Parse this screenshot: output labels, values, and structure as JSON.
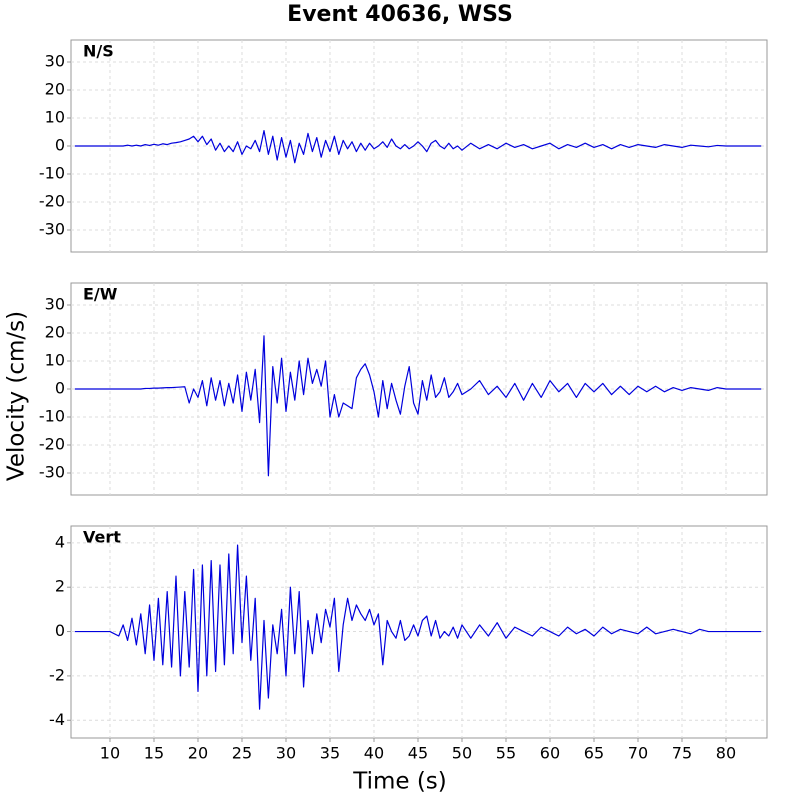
{
  "title": "Event 40636, WSS",
  "xlabel": "Time (s)",
  "ylabel": "Velocity (cm/s)",
  "chart_data": [
    {
      "type": "line",
      "title": "N/S",
      "color": "#0000dd",
      "grid": true,
      "xlim": [
        5.57,
        84.66
      ],
      "xticks": [
        10,
        15,
        20,
        25,
        30,
        35,
        40,
        45,
        50,
        55,
        60,
        65,
        70,
        75,
        80
      ],
      "ylim": [
        -37.86,
        37.86
      ],
      "yticks": [
        30,
        20,
        10,
        0,
        -10,
        -20,
        -30
      ],
      "x": [
        6,
        8,
        10,
        11,
        11.5,
        12,
        12.5,
        13,
        13.5,
        14,
        14.5,
        15,
        15.5,
        16,
        16.5,
        17,
        17.5,
        18,
        18.5,
        19,
        19.5,
        20,
        20.5,
        21,
        21.5,
        22,
        22.5,
        23,
        23.5,
        24,
        24.5,
        25,
        25.5,
        26,
        26.5,
        27,
        27.5,
        28,
        28.5,
        29,
        29.5,
        30,
        30.5,
        31,
        31.5,
        32,
        32.5,
        33,
        33.5,
        34,
        34.5,
        35,
        35.5,
        36,
        36.5,
        37,
        37.5,
        38,
        38.5,
        39,
        39.5,
        40,
        40.5,
        41,
        41.5,
        42,
        42.5,
        43,
        43.5,
        44,
        44.5,
        45,
        45.5,
        46,
        46.5,
        47,
        47.5,
        48,
        48.5,
        49,
        49.5,
        50,
        51,
        52,
        53,
        54,
        55,
        56,
        57,
        58,
        59,
        60,
        61,
        62,
        63,
        64,
        65,
        66,
        67,
        68,
        69,
        70,
        71,
        72,
        73,
        74,
        75,
        76,
        77,
        78,
        79,
        80,
        81,
        82,
        83,
        84
      ],
      "values": [
        0,
        0,
        0,
        0,
        0,
        0.3,
        0,
        0.3,
        0,
        0.5,
        0.2,
        0.6,
        0.3,
        0.8,
        0.5,
        1,
        1.2,
        1.5,
        2,
        2.5,
        3.5,
        1.5,
        3.5,
        0.5,
        2.5,
        -1.5,
        1,
        -2,
        0,
        -2,
        1.5,
        -3,
        0,
        -1,
        2,
        -2,
        5.5,
        -3,
        3.5,
        -5,
        3,
        -4,
        2,
        -6,
        1,
        -3,
        4.5,
        -2,
        3,
        -4,
        2,
        -2,
        3.5,
        -3,
        2,
        -1,
        1.5,
        -2,
        1,
        -1.5,
        1,
        -1,
        0,
        1.5,
        -0.5,
        2.5,
        0,
        -1,
        0.5,
        -1,
        0,
        1.5,
        0,
        -2,
        1,
        2,
        0,
        -1,
        1,
        -1,
        0,
        -1.5,
        1,
        -1,
        0.5,
        -1,
        1,
        -0.5,
        0.5,
        -1,
        0,
        1,
        -1,
        0.5,
        -0.5,
        1,
        -0.5,
        0.5,
        -1,
        0.5,
        -0.5,
        0.5,
        0,
        -0.5,
        0.5,
        0,
        -0.5,
        0.3,
        0,
        -0.3,
        0.2,
        0,
        0,
        0,
        0,
        0
      ]
    },
    {
      "type": "line",
      "title": "E/W",
      "color": "#0000dd",
      "grid": true,
      "xlim": [
        5.57,
        84.66
      ],
      "xticks": [
        10,
        15,
        20,
        25,
        30,
        35,
        40,
        45,
        50,
        55,
        60,
        65,
        70,
        75,
        80
      ],
      "ylim": [
        -37.86,
        37.86
      ],
      "yticks": [
        30,
        20,
        10,
        0,
        -10,
        -20,
        -30
      ],
      "x": [
        6,
        8,
        10,
        11,
        11.5,
        12,
        12.5,
        13,
        13.5,
        14,
        14.5,
        15,
        15.5,
        16,
        16.5,
        17,
        17.5,
        18,
        18.5,
        19,
        19.5,
        20,
        20.5,
        21,
        21.5,
        22,
        22.5,
        23,
        23.5,
        24,
        24.5,
        25,
        25.5,
        26,
        26.5,
        27,
        27.5,
        28,
        28.5,
        29,
        29.5,
        30,
        30.5,
        31,
        31.5,
        32,
        32.5,
        33,
        33.5,
        34,
        34.5,
        35,
        35.5,
        36,
        36.5,
        37,
        37.5,
        38,
        38.5,
        39,
        39.5,
        40,
        40.5,
        41,
        41.5,
        42,
        42.5,
        43,
        43.5,
        44,
        44.5,
        45,
        45.5,
        46,
        46.5,
        47,
        47.5,
        48,
        48.5,
        49,
        49.5,
        50,
        51,
        52,
        53,
        54,
        55,
        56,
        57,
        58,
        59,
        60,
        61,
        62,
        63,
        64,
        65,
        66,
        67,
        68,
        69,
        70,
        71,
        72,
        73,
        74,
        75,
        76,
        77,
        78,
        79,
        80,
        81,
        82,
        83,
        84
      ],
      "values": [
        0,
        0,
        0,
        0,
        0,
        0,
        0,
        0,
        0,
        0.2,
        0.2,
        0.3,
        0.3,
        0.4,
        0.5,
        0.5,
        0.6,
        0.7,
        0.8,
        -5,
        0,
        -3,
        3,
        -6,
        4,
        -4,
        3,
        -6,
        2,
        -5,
        5,
        -8,
        6,
        -4,
        7,
        -12,
        19,
        -31,
        8,
        -5,
        11,
        -8,
        6,
        -4,
        10,
        -2,
        11,
        2,
        7,
        1,
        10,
        -10,
        -2,
        -10,
        -5,
        -6,
        -7,
        4,
        7,
        9,
        5,
        -1,
        -10,
        3,
        -7,
        2,
        -4,
        -9,
        1,
        8,
        -5,
        -9,
        3,
        -4,
        5,
        -3,
        -1,
        4,
        -3,
        -1,
        2,
        -2,
        0,
        3,
        -2,
        1,
        -3,
        2,
        -4,
        2,
        -3,
        3,
        -1,
        2,
        -3,
        2,
        -1,
        2,
        -2,
        1,
        -2,
        1,
        -1,
        1,
        -1,
        0.5,
        -0.5,
        0.5,
        0,
        -0.5,
        0.5,
        0,
        0,
        0,
        0,
        0
      ]
    },
    {
      "type": "line",
      "title": "Vert",
      "color": "#0000dd",
      "grid": true,
      "xlim": [
        5.57,
        84.66
      ],
      "xticks": [
        10,
        15,
        20,
        25,
        30,
        35,
        40,
        45,
        50,
        55,
        60,
        65,
        70,
        75,
        80
      ],
      "ylim": [
        -4.8,
        4.76
      ],
      "yticks": [
        4,
        2,
        0,
        -2,
        -4
      ],
      "x": [
        6,
        8,
        10,
        11,
        11.5,
        12,
        12.5,
        13,
        13.5,
        14,
        14.5,
        15,
        15.5,
        16,
        16.5,
        17,
        17.5,
        18,
        18.5,
        19,
        19.5,
        20,
        20.5,
        21,
        21.5,
        22,
        22.5,
        23,
        23.5,
        24,
        24.5,
        25,
        25.5,
        26,
        26.5,
        27,
        27.5,
        28,
        28.5,
        29,
        29.5,
        30,
        30.5,
        31,
        31.5,
        32,
        32.5,
        33,
        33.5,
        34,
        34.5,
        35,
        35.5,
        36,
        36.5,
        37,
        37.5,
        38,
        38.5,
        39,
        39.5,
        40,
        40.5,
        41,
        41.5,
        42,
        42.5,
        43,
        43.5,
        44,
        44.5,
        45,
        45.5,
        46,
        46.5,
        47,
        47.5,
        48,
        48.5,
        49,
        49.5,
        50,
        51,
        52,
        53,
        54,
        55,
        56,
        57,
        58,
        59,
        60,
        61,
        62,
        63,
        64,
        65,
        66,
        67,
        68,
        69,
        70,
        71,
        72,
        73,
        74,
        75,
        76,
        77,
        78,
        79,
        80,
        81,
        82,
        83,
        84
      ],
      "values": [
        0,
        0,
        0,
        -0.2,
        0.3,
        -0.4,
        0.6,
        -0.6,
        0.8,
        -1,
        1.2,
        -1.3,
        1.5,
        -1.5,
        1.8,
        -1.6,
        2.5,
        -2,
        1.8,
        -1.6,
        2.8,
        -2.7,
        3,
        -2,
        3.2,
        -1.8,
        3,
        -1.5,
        3.5,
        -1,
        3.9,
        -0.5,
        2.5,
        -1.3,
        1.5,
        -3.5,
        0.5,
        -3,
        0.3,
        -1,
        1,
        -2,
        2,
        -1,
        1.8,
        -2.5,
        0.5,
        -1,
        0.8,
        -0.5,
        1,
        0.2,
        1.5,
        -1.8,
        0.3,
        1.5,
        0.5,
        1.2,
        0.8,
        0.5,
        1,
        0.3,
        0.8,
        -1.5,
        0.5,
        0,
        -0.3,
        0.5,
        -0.4,
        -0.2,
        0.3,
        -0.2,
        0.5,
        0.7,
        -0.2,
        0.5,
        -0.3,
        0,
        -0.2,
        0.2,
        -0.3,
        0.3,
        -0.3,
        0.3,
        -0.2,
        0.4,
        -0.3,
        0.2,
        0,
        -0.2,
        0.2,
        0,
        -0.2,
        0.2,
        -0.1,
        0.1,
        -0.2,
        0.2,
        -0.1,
        0.1,
        0,
        -0.1,
        0.2,
        -0.1,
        0,
        0.1,
        0,
        -0.1,
        0.1,
        0,
        0,
        0,
        0,
        0,
        0,
        0
      ]
    }
  ]
}
